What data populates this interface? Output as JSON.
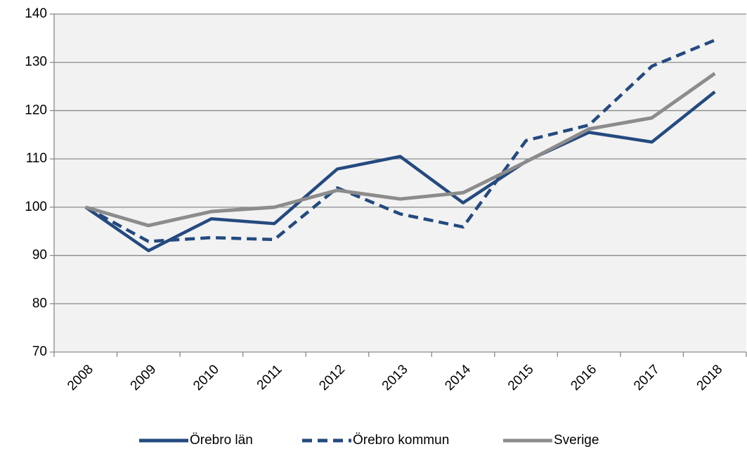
{
  "chart_data": {
    "type": "line",
    "categories": [
      "2008",
      "2009",
      "2010",
      "2011",
      "2012",
      "2013",
      "2014",
      "2015",
      "2016",
      "2017",
      "2018"
    ],
    "series": [
      {
        "name": "Örebro län",
        "color": "#244a7f",
        "dash": false,
        "values": [
          100,
          91,
          97.6,
          96.6,
          107.9,
          110.5,
          100.9,
          109.5,
          115.5,
          113.5,
          123.9
        ]
      },
      {
        "name": "Örebro kommun",
        "color": "#244a7f",
        "dash": true,
        "values": [
          100,
          92.9,
          93.7,
          93.3,
          104,
          98.6,
          95.9,
          113.8,
          117,
          129.2,
          134.6
        ]
      },
      {
        "name": "Sverige",
        "color": "#8c8c8c",
        "dash": false,
        "values": [
          100,
          96.2,
          99.1,
          100,
          103.5,
          101.7,
          103,
          109.4,
          116.2,
          118.5,
          127.7
        ]
      }
    ],
    "ylim": [
      70,
      140
    ],
    "yticks": [
      70,
      80,
      90,
      100,
      110,
      120,
      130,
      140
    ],
    "grid": true,
    "legend": "bottom"
  }
}
